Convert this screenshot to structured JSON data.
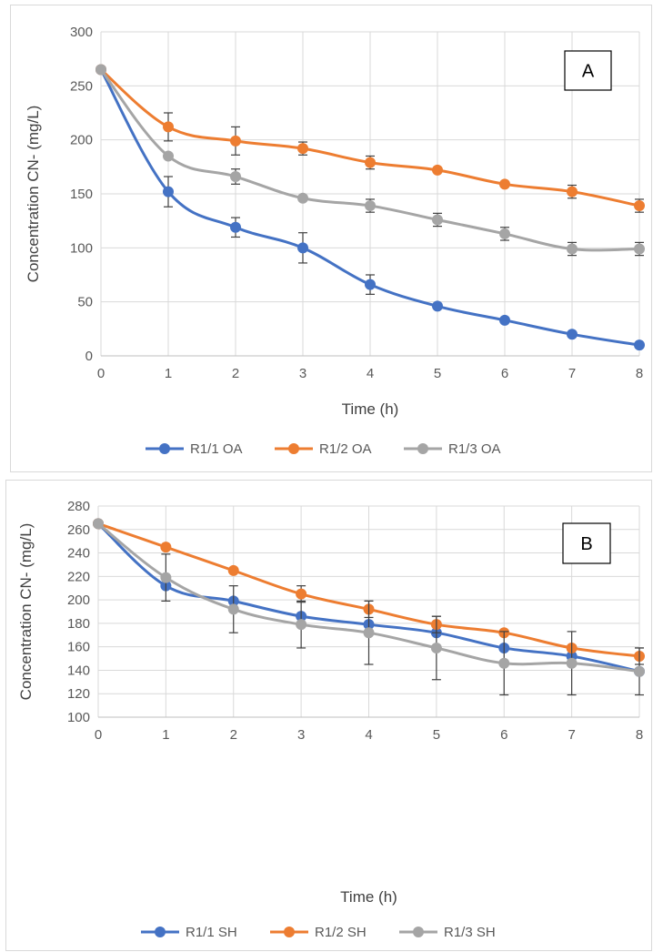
{
  "chart_data": [
    {
      "type": "line",
      "panel_label": "A",
      "xlabel": "Time (h)",
      "ylabel": "Concentration CN- (mg/L)",
      "x": [
        0,
        1,
        2,
        3,
        4,
        5,
        6,
        7,
        8
      ],
      "xlim": [
        0,
        8
      ],
      "ylim": [
        0,
        300
      ],
      "yticks": [
        0,
        50,
        100,
        150,
        200,
        250,
        300
      ],
      "grid": true,
      "legend_position": "bottom",
      "series": [
        {
          "name": "R1/1 OA",
          "color": "#4472C4",
          "values": [
            265,
            152,
            119,
            100,
            66,
            46,
            33,
            20,
            10
          ],
          "errors": [
            0,
            14,
            9,
            14,
            9,
            0,
            0,
            0,
            0
          ]
        },
        {
          "name": "R1/2 OA",
          "color": "#ED7D31",
          "values": [
            265,
            212,
            199,
            192,
            179,
            172,
            159,
            152,
            139
          ],
          "errors": [
            0,
            13,
            13,
            6,
            6,
            0,
            0,
            6,
            6
          ]
        },
        {
          "name": "R1/3 OA",
          "color": "#A5A5A5",
          "values": [
            265,
            185,
            166,
            146,
            139,
            126,
            113,
            99,
            99
          ],
          "errors": [
            0,
            0,
            7,
            0,
            6,
            6,
            6,
            6,
            6
          ]
        }
      ]
    },
    {
      "type": "line",
      "panel_label": "B",
      "xlabel": "Time (h)",
      "ylabel": "Concentration CN- (mg/L)",
      "x": [
        0,
        1,
        2,
        3,
        4,
        5,
        6,
        7,
        8
      ],
      "xlim": [
        0,
        8
      ],
      "ylim": [
        100,
        280
      ],
      "yticks": [
        100,
        120,
        140,
        160,
        180,
        200,
        220,
        240,
        260,
        280
      ],
      "grid": true,
      "legend_position": "bottom",
      "series": [
        {
          "name": "R1/1 SH",
          "color": "#4472C4",
          "values": [
            265,
            212,
            199,
            186,
            179,
            172,
            159,
            152,
            139
          ],
          "errors": [
            0,
            0,
            0,
            0,
            0,
            0,
            0,
            0,
            0
          ]
        },
        {
          "name": "R1/2 SH",
          "color": "#ED7D31",
          "values": [
            265,
            245,
            225,
            205,
            192,
            179,
            172,
            159,
            152
          ],
          "errors": [
            0,
            0,
            0,
            7,
            7,
            7,
            0,
            0,
            7
          ]
        },
        {
          "name": "R1/3 SH",
          "color": "#A5A5A5",
          "values": [
            265,
            219,
            192,
            179,
            172,
            159,
            146,
            146,
            139
          ],
          "errors": [
            0,
            20,
            20,
            20,
            27,
            27,
            27,
            27,
            20
          ]
        }
      ]
    }
  ]
}
